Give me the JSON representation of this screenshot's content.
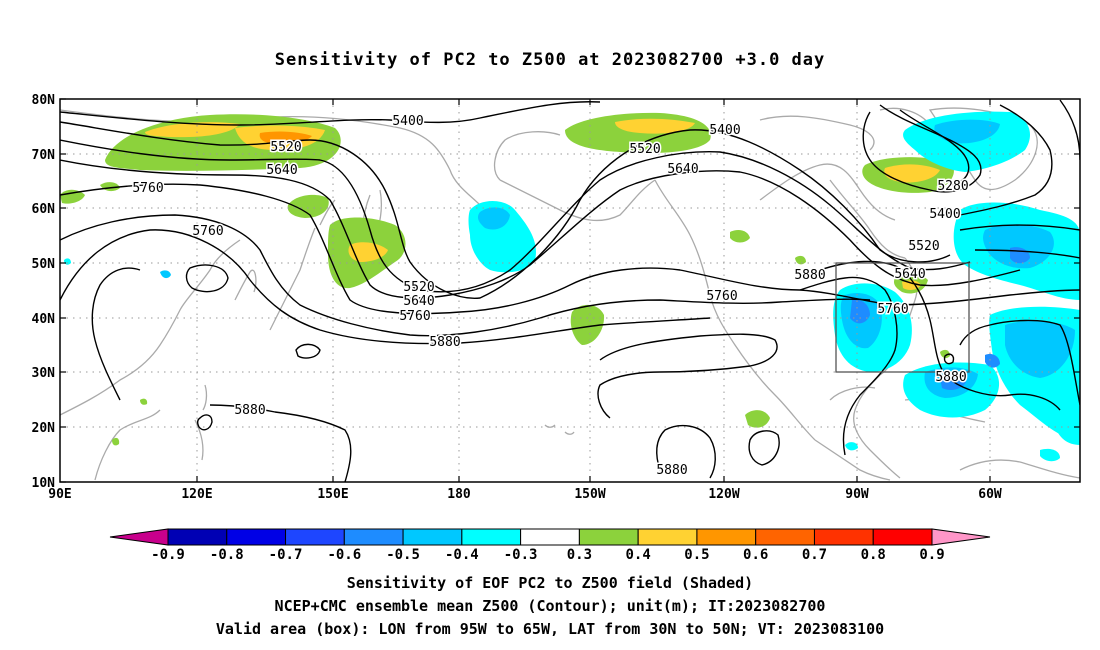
{
  "title": "Sensitivity of PC2 to Z500 at 2023082700 +3.0 day",
  "map": {
    "lat_labels": [
      "80N",
      "70N",
      "60N",
      "50N",
      "40N",
      "30N",
      "20N",
      "10N"
    ],
    "lon_labels": [
      "90E",
      "120E",
      "150E",
      "180",
      "150W",
      "120W",
      "90W",
      "60W"
    ],
    "contour_labels": [
      "5400",
      "5520",
      "5640",
      "5760",
      "5760",
      "5400",
      "5520",
      "5640",
      "5280",
      "5400",
      "5520",
      "5640",
      "5520",
      "5640",
      "5760",
      "5880",
      "5760",
      "5880",
      "5760",
      "5880",
      "5880",
      "5880"
    ],
    "valid_box": {
      "lon_min": -95,
      "lon_max": -65,
      "lat_min": 30,
      "lat_max": 50
    }
  },
  "colorbar": {
    "values": [
      "-0.9",
      "-0.8",
      "-0.7",
      "-0.6",
      "-0.5",
      "-0.4",
      "-0.3",
      "0.3",
      "0.4",
      "0.5",
      "0.6",
      "0.7",
      "0.8",
      "0.9"
    ],
    "colors": [
      "#c8008c",
      "#0000b4",
      "#0000e6",
      "#1e46ff",
      "#1e8cff",
      "#00c8ff",
      "#00ffff",
      "#ffffff",
      "#8cd23c",
      "#ffd232",
      "#ff9600",
      "#ff6400",
      "#ff3200",
      "#ff0000",
      "#ff96c8"
    ]
  },
  "captions": [
    "Sensitivity of EOF PC2 to Z500 field (Shaded)",
    "NCEP+CMC ensemble mean Z500 (Contour); unit(m); IT:2023082700",
    "Valid area (box): LON from 95W to 65W, LAT from 30N to 50N; VT: 2023083100"
  ]
}
